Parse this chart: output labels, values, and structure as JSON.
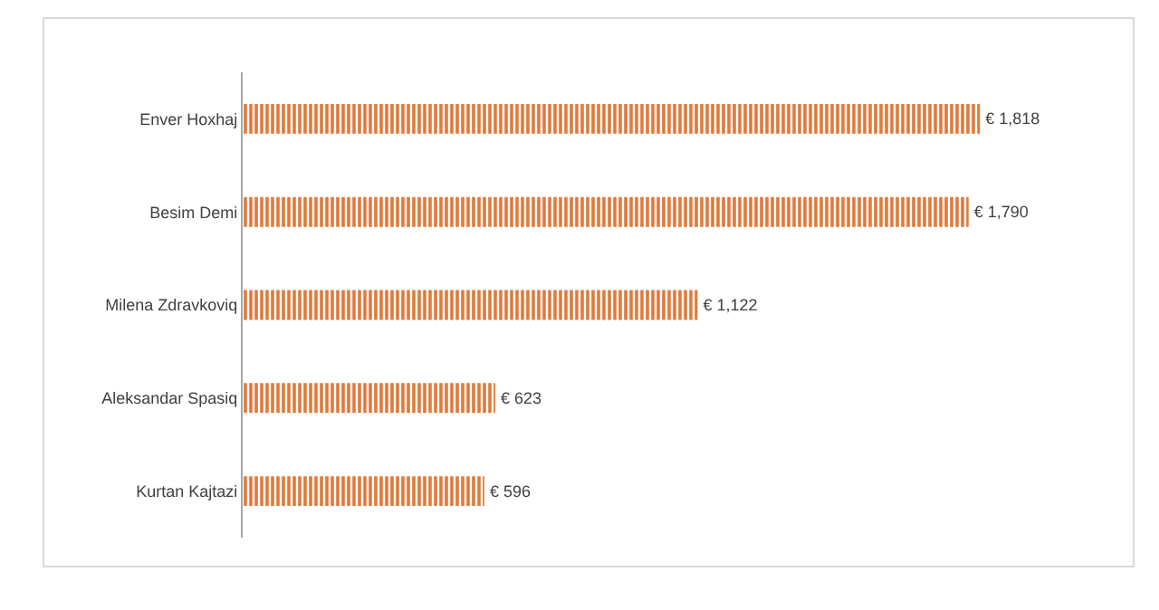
{
  "chart_data": {
    "type": "bar",
    "orientation": "horizontal",
    "categories": [
      "Enver Hoxhaj",
      "Besim Demi",
      "Milena Zdravkoviq",
      "Aleksandar Spasiq",
      "Kurtan Kajtazi"
    ],
    "values": [
      1818,
      1790,
      1122,
      623,
      596
    ],
    "value_labels": [
      "€ 1,818",
      "€ 1,790",
      "€ 1,122",
      "€ 623",
      "€ 596"
    ],
    "color": "#e07a3c"
  }
}
